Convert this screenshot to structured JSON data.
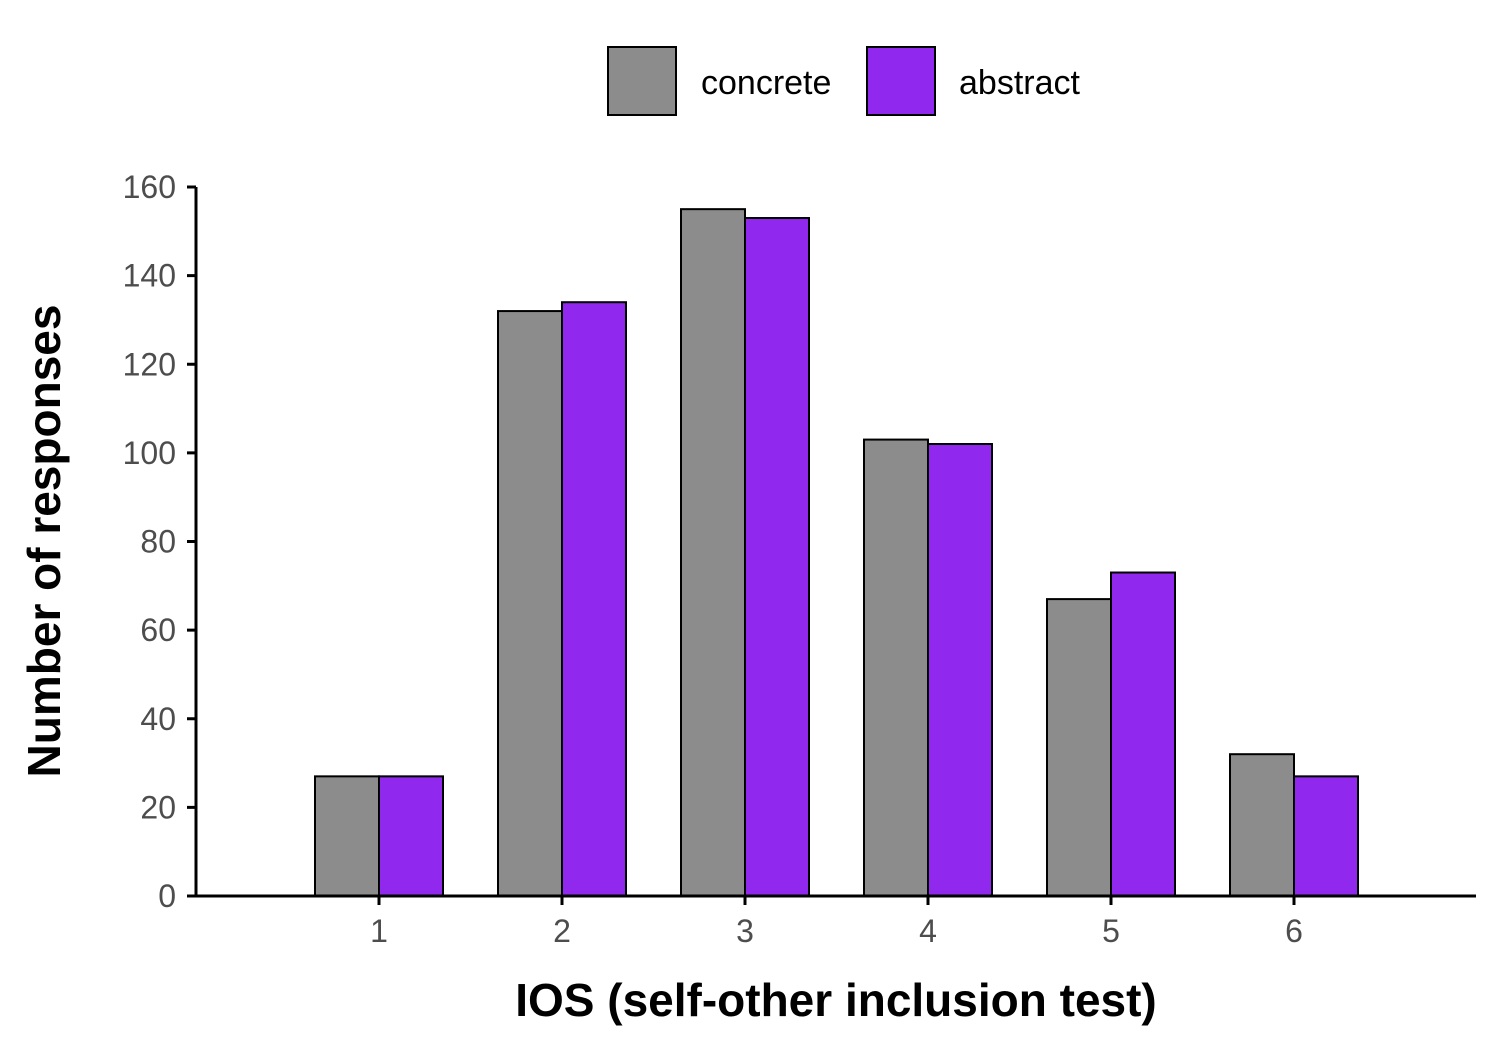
{
  "chart_data": {
    "type": "bar",
    "categories": [
      "1",
      "2",
      "3",
      "4",
      "5",
      "6"
    ],
    "series": [
      {
        "name": "concrete",
        "color": "#8c8c8c",
        "values": [
          27,
          132,
          155,
          103,
          67,
          32
        ]
      },
      {
        "name": "abstract",
        "color": "#9128ee",
        "values": [
          27,
          134,
          153,
          102,
          73,
          27
        ]
      }
    ],
    "xlabel": "IOS (self-other inclusion test)",
    "ylabel": "Number of responses",
    "ylim": [
      0,
      160
    ],
    "yticks": [
      "0",
      "20",
      "40",
      "60",
      "80",
      "100",
      "120",
      "140",
      "160"
    ],
    "grid": false,
    "legend_position": "top"
  }
}
